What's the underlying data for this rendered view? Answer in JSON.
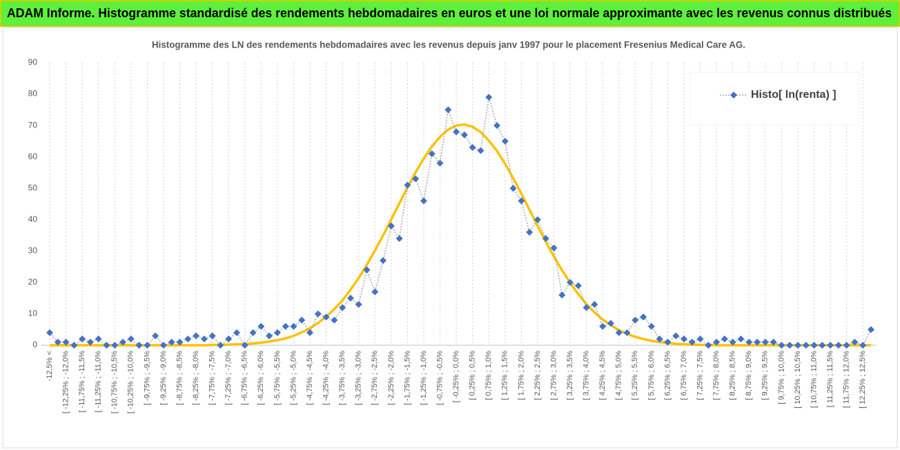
{
  "chart_data": {
    "type": "line",
    "header": "ADAM Informe. Histogramme standardisé des rendements hebdomadaires en euros et une loi normale approximante avec les revenus connus distribués",
    "title": "Histogramme des LN des rendements hebdomadaires avec les revenus depuis janv 1997 pour le placement Fresenius Medical Care AG.",
    "categories": [
      "-12,5% <",
      null,
      "[ -12,25% ; -12,0%",
      null,
      "[ -11,75% ; -11,5%",
      null,
      "[ -11,25% ; -11,0%",
      null,
      "[ -10,75% ; -10,5%",
      null,
      "[ -10,25% ; -10,0%",
      null,
      "[ -9,75% ; -9,5%",
      null,
      "[ -9,25% ; -9,0%",
      null,
      "[ -8,75% ; -8,5%",
      null,
      "[ -8,25% ; -8,0%",
      null,
      "[ -7,75% ; -7,5%",
      null,
      "[ -7,25% ; -7,0%",
      null,
      "[ -6,75% ; -6,5%",
      null,
      "[ -6,25% ; -6,0%",
      null,
      "[ -5,75% ; -5,5%",
      null,
      "[ -5,25% ; -5,0%",
      null,
      "[ -4,75% ; -4,5%",
      null,
      "[ -4,25% ; -4,0%",
      null,
      "[ -3,75% ; -3,5%",
      null,
      "[ -3,25% ; -3,0%",
      null,
      "[ -2,75% ; -2,5%",
      null,
      "[ -2,25% ; -2,0%",
      null,
      "[ -1,75% ; -1,5%",
      null,
      "[ -1,25% ; -1,0%",
      null,
      "[ -0,75% ; -0,5%",
      null,
      "[ -0,25% ; 0,0%",
      null,
      "[ 0,25% ; 0,5%",
      null,
      "[ 0,75% ; 1,0%",
      null,
      "[ 1,25% ; 1,5%",
      null,
      "[ 1,75% ; 2,0%",
      null,
      "[ 2,25% ; 2,5%",
      null,
      "[ 2,75% ; 3,0%",
      null,
      "[ 3,25% ; 3,5%",
      null,
      "[ 3,75% ; 4,0%",
      null,
      "[ 4,25% ; 4,5%",
      null,
      "[ 4,75% ; 5,0%",
      null,
      "[ 5,25% ; 5,5%",
      null,
      "[ 5,75% ; 6,0%",
      null,
      "[ 6,25% ; 6,5%",
      null,
      "[ 6,75% ; 7,0%",
      null,
      "[ 7,25% ; 7,5%",
      null,
      "[ 7,75% ; 8,0%",
      null,
      "[ 8,25% ; 8,5%",
      null,
      "[ 8,75% ; 9,0%",
      null,
      "[ 9,25% ; 9,5%",
      null,
      "[ 9,75% ; 10,0%",
      null,
      "[ 10,25% ; 10,5%",
      null,
      "[ 10,75% ; 11,0%",
      null,
      "[ 11,25% ; 11,5%",
      null,
      "[ 11,75% ; 12,0%",
      null,
      "[ 12,25% ; 12,5%",
      null
    ],
    "series": [
      {
        "name": "Histo[ ln(renta) ]",
        "color": "#4472c4",
        "line_color": "#a6a6a6",
        "line_style": "dotted",
        "marker": "diamond",
        "values": [
          4,
          1,
          1,
          0,
          2,
          1,
          2,
          0,
          0,
          1,
          2,
          0,
          0,
          3,
          0,
          1,
          1,
          2,
          3,
          2,
          3,
          0,
          2,
          4,
          0,
          4,
          6,
          3,
          4,
          6,
          6,
          8,
          4,
          10,
          9,
          8,
          12,
          15,
          13,
          24,
          17,
          27,
          38,
          34,
          51,
          53,
          46,
          61,
          58,
          75,
          68,
          67,
          63,
          62,
          79,
          70,
          65,
          50,
          46,
          36,
          40,
          34,
          31,
          16,
          20,
          19,
          12,
          13,
          6,
          7,
          4,
          4,
          8,
          9,
          6,
          2,
          1,
          3,
          2,
          1,
          2,
          0,
          1,
          2,
          1,
          2,
          1,
          1,
          1,
          1,
          0,
          0,
          0,
          0,
          0,
          0,
          0,
          0,
          0,
          1,
          0,
          5
        ]
      },
      {
        "color": "#ffc000",
        "line_style": "solid",
        "marker": "none",
        "values": [
          0,
          0,
          0,
          0,
          0,
          0,
          0,
          0,
          0,
          0,
          0,
          0,
          0,
          0,
          0,
          0,
          0,
          0,
          0,
          0,
          0.1,
          0.1,
          0.2,
          0.3,
          0.4,
          0.6,
          0.8,
          1.2,
          1.6,
          2.2,
          3.0,
          4.1,
          5.4,
          7.1,
          9.1,
          11.5,
          14.3,
          17.7,
          21.4,
          25.6,
          30.2,
          35.0,
          40.1,
          45.2,
          50.3,
          55.1,
          59.5,
          63.3,
          66.4,
          68.7,
          70.0,
          70.3,
          69.6,
          67.9,
          65.2,
          61.9,
          57.8,
          53.2,
          48.3,
          43.2,
          38.0,
          33.0,
          28.3,
          23.9,
          19.9,
          16.3,
          13.1,
          10.5,
          8.2,
          6.4,
          4.8,
          3.6,
          2.7,
          2.0,
          1.4,
          1.0,
          0.7,
          0.5,
          0.3,
          0.2,
          0.1,
          0.1,
          0,
          0,
          0,
          0,
          0,
          0,
          0,
          0,
          0,
          0,
          0,
          0,
          0,
          0,
          0,
          0,
          0,
          0,
          0,
          0
        ]
      }
    ],
    "ylim": [
      0,
      90
    ],
    "yticks": [
      0,
      10,
      20,
      30,
      40,
      50,
      60,
      70,
      80,
      90
    ],
    "grid": "x",
    "legend": "upper right"
  }
}
